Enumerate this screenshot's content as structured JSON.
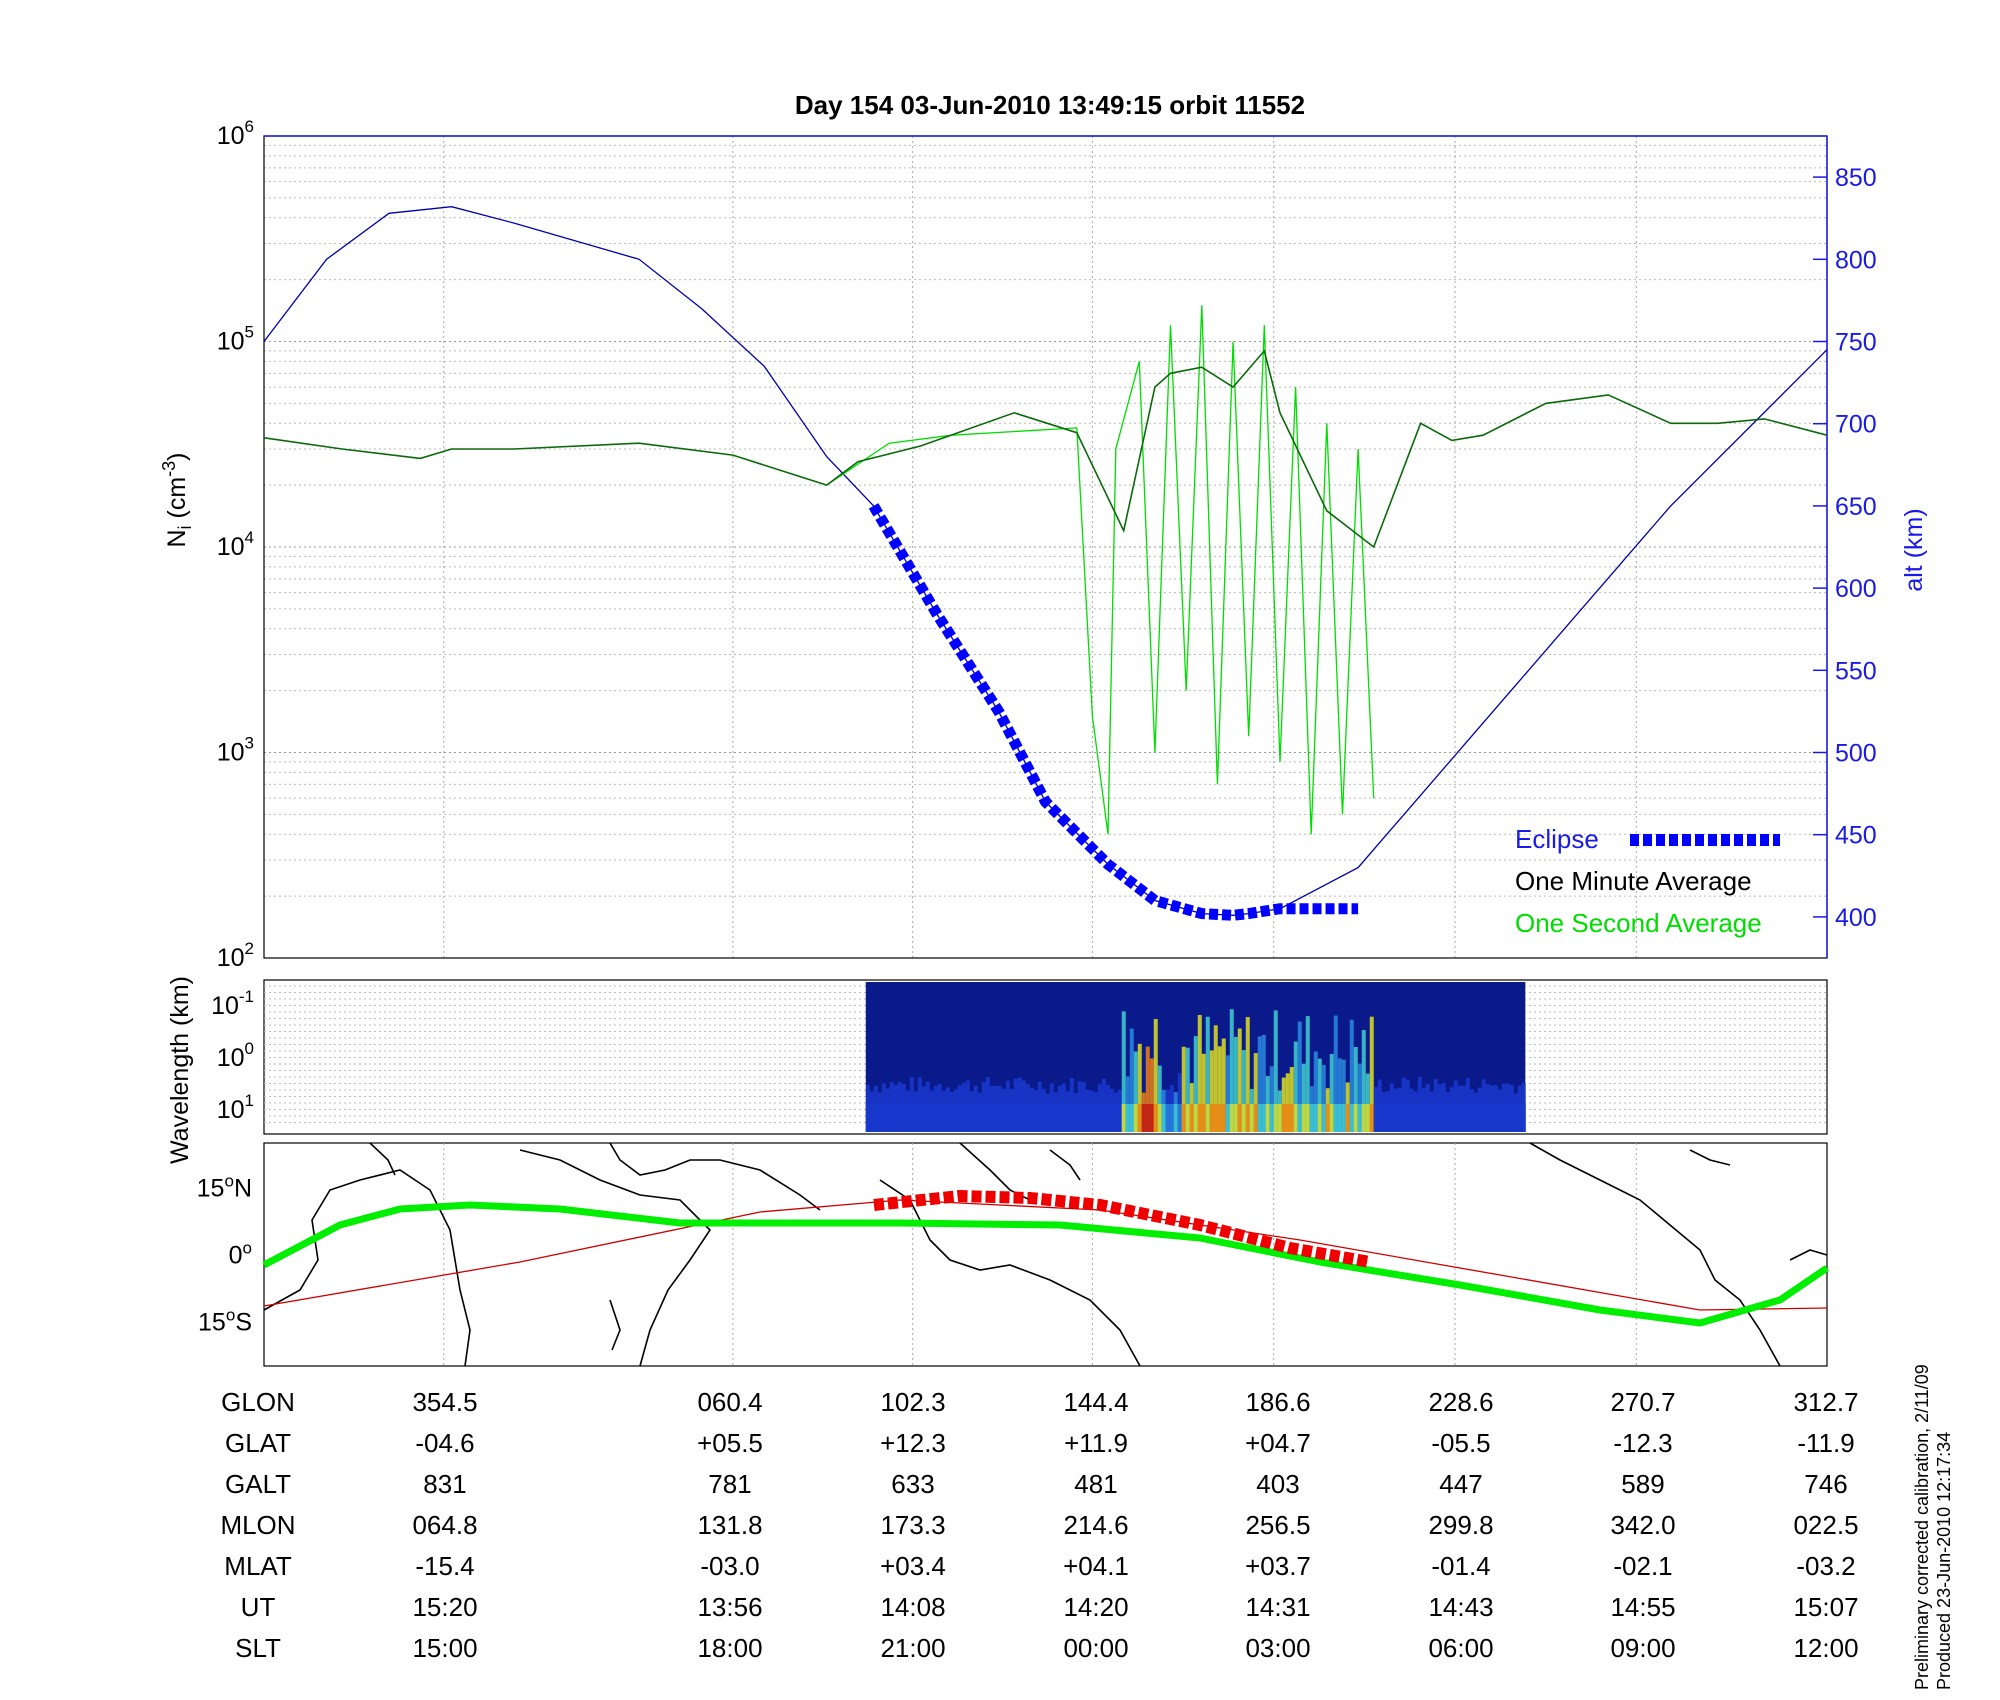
{
  "chart_data": [
    {
      "type": "line",
      "title": "Day 154  03-Jun-2010 13:49:15   orbit 11552",
      "ylabel": "N_i (cm^-3)",
      "ylabel_main": "N",
      "ylabel_sub": "i",
      "ylabel_unit_pre": " (cm",
      "ylabel_unit_exp": "-3",
      "ylabel_unit_post": ")",
      "y_scale": "log",
      "ylim": [
        100,
        1000000
      ],
      "y_ticks": [
        {
          "base": "10",
          "exp": "2"
        },
        {
          "base": "10",
          "exp": "3"
        },
        {
          "base": "10",
          "exp": "4"
        },
        {
          "base": "10",
          "exp": "5"
        },
        {
          "base": "10",
          "exp": "6"
        }
      ],
      "y2label": "alt (km)",
      "y2lim": [
        375,
        875
      ],
      "y2_ticks": [
        "400",
        "450",
        "500",
        "550",
        "600",
        "650",
        "700",
        "750",
        "800",
        "850"
      ],
      "grid": true,
      "legend_placement": "bottom-right",
      "legend": [
        {
          "label": "Eclipse",
          "color": "#0000ff"
        },
        {
          "label": "One Minute Average",
          "color": "#000000"
        },
        {
          "label": "One Second Average",
          "color": "#00dd00"
        }
      ],
      "series": [
        {
          "name": "alt (km)",
          "axis": "right",
          "color": "#0000aa",
          "x": [
            0,
            0.04,
            0.08,
            0.12,
            0.16,
            0.24,
            0.28,
            0.32,
            0.36,
            0.39,
            0.43,
            0.47,
            0.5,
            0.54,
            0.57,
            0.6,
            0.62,
            0.63,
            0.65,
            0.7,
            0.8,
            0.9,
            1.0
          ],
          "values": [
            750,
            800,
            828,
            832,
            822,
            800,
            770,
            735,
            680,
            650,
            585,
            525,
            470,
            432,
            410,
            402,
            401,
            402,
            405,
            430,
            540,
            650,
            745
          ]
        },
        {
          "name": "One Minute Average",
          "axis": "left",
          "color": "#000000",
          "x": [
            0,
            0.05,
            0.1,
            0.12,
            0.14,
            0.16,
            0.24,
            0.3,
            0.36,
            0.38,
            0.42,
            0.48,
            0.52,
            0.55,
            0.57,
            0.58,
            0.6,
            0.62,
            0.64,
            0.65,
            0.68,
            0.71,
            0.74,
            0.76,
            0.78,
            0.82,
            0.86,
            0.9,
            0.93,
            0.96,
            1.0
          ],
          "values": [
            34000,
            30000,
            27000,
            30000,
            30000,
            30000,
            32000,
            28000,
            20000,
            26000,
            31000,
            45000,
            36000,
            12000,
            60000,
            70000,
            75000,
            60000,
            90000,
            45000,
            15000,
            10000,
            40000,
            33000,
            35000,
            50000,
            55000,
            40000,
            40000,
            42000,
            35000
          ]
        },
        {
          "name": "One Second Average",
          "axis": "left",
          "color": "#00dd00",
          "x": [
            0.36,
            0.4,
            0.44,
            0.52,
            0.53,
            0.54,
            0.545,
            0.56,
            0.57,
            0.58,
            0.59,
            0.6,
            0.61,
            0.62,
            0.63,
            0.64,
            0.65,
            0.66,
            0.67,
            0.68,
            0.69,
            0.7,
            0.71
          ],
          "values": [
            20000,
            32000,
            35000,
            38000,
            1500,
            400,
            30000,
            80000,
            1000,
            120000,
            2000,
            150000,
            700,
            100000,
            1200,
            120000,
            900,
            60000,
            400,
            40000,
            500,
            30000,
            600
          ]
        },
        {
          "name": "Eclipse",
          "axis": "right",
          "color": "#0000ff",
          "x": [
            0.39,
            0.43,
            0.47,
            0.5,
            0.54,
            0.57,
            0.6,
            0.62,
            0.63,
            0.65,
            0.7
          ],
          "values": [
            650,
            585,
            525,
            470,
            432,
            410,
            402,
            401,
            402,
            405,
            405
          ]
        }
      ]
    },
    {
      "type": "heatmap",
      "ylabel": "Wavelength (km)",
      "y_ticks": [
        {
          "base": "10",
          "exp": "-1"
        },
        {
          "base": "10",
          "exp": "0"
        },
        {
          "base": "10",
          "exp": "1"
        }
      ],
      "data_extent_fraction": [
        0.385,
        0.807
      ],
      "colors": [
        "#0a1a8a",
        "#1a3ad0",
        "#2a8ae0",
        "#40d0d0",
        "#e0e020",
        "#f08010",
        "#c01010"
      ]
    },
    {
      "type": "map",
      "y_ticks": [
        {
          "deg": "15",
          "hemi": "N"
        },
        {
          "deg": "0",
          "hemi": ""
        },
        {
          "deg": "15",
          "hemi": "S"
        }
      ],
      "ylim": [
        -25,
        25
      ],
      "track_color": "#00ee00",
      "eclipse_color": "#ee0000",
      "orbit_color": "#cc0000",
      "coast_color": "#000000"
    }
  ],
  "table": {
    "row_labels": [
      "GLON",
      "GLAT",
      "GALT",
      "MLON",
      "MLAT",
      "UT",
      "SLT"
    ],
    "columns": [
      [
        "354.5",
        "-04.6",
        "831",
        "064.8",
        "-15.4",
        "15:20",
        "15:00"
      ],
      [
        "060.4",
        "+05.5",
        "781",
        "131.8",
        "-03.0",
        "13:56",
        "18:00"
      ],
      [
        "102.3",
        "+12.3",
        "633",
        "173.3",
        "+03.4",
        "14:08",
        "21:00"
      ],
      [
        "144.4",
        "+11.9",
        "481",
        "214.6",
        "+04.1",
        "14:20",
        "00:00"
      ],
      [
        "186.6",
        "+04.7",
        "403",
        "256.5",
        "+03.7",
        "14:31",
        "03:00"
      ],
      [
        "228.6",
        "-05.5",
        "447",
        "299.8",
        "-01.4",
        "14:43",
        "06:00"
      ],
      [
        "270.7",
        "-12.3",
        "589",
        "342.0",
        "-02.1",
        "14:55",
        "09:00"
      ],
      [
        "312.7",
        "-11.9",
        "746",
        "022.5",
        "-03.2",
        "15:07",
        "12:00"
      ]
    ]
  },
  "footnote": {
    "line1": "Preliminary corrected calibration, 2/11/09",
    "line2": "Produced 23-Jun-2010 12:17:34"
  }
}
